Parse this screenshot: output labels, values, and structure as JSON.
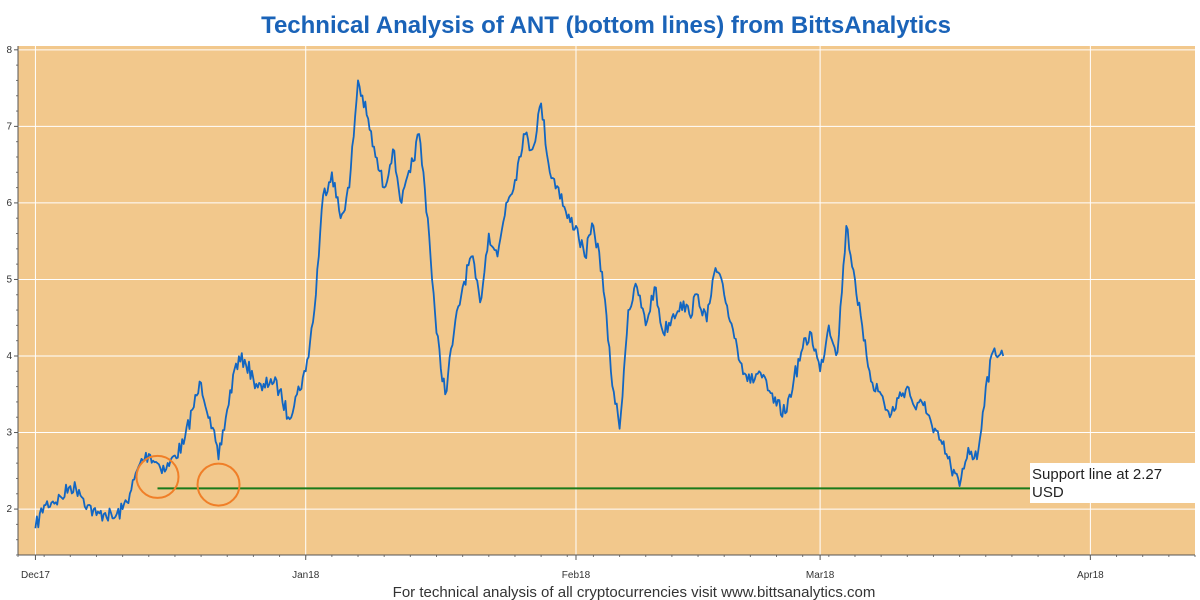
{
  "colors": {
    "background": "#f2c88c",
    "grid": "#ffffff",
    "price_line": "#1266c2",
    "support_line": "#1a7a1a",
    "circle": "#f07f28",
    "title": "#1a63b8",
    "annotation_bg": "#ffffff"
  },
  "chart_data": {
    "type": "line",
    "title": "Technical Analysis of ANT (bottom lines) from BittsAnalytics",
    "xlabel": "",
    "ylabel": "",
    "xlim": [
      "2017-11-29",
      "2018-04-13"
    ],
    "ylim": [
      1.4,
      8.05
    ],
    "x_ticks": [
      "Dec17",
      "Jan18",
      "Feb18",
      "Mar18",
      "Apr18"
    ],
    "x_tick_dates": [
      "2017-12-01",
      "2018-01-01",
      "2018-02-01",
      "2018-03-01",
      "2018-04-01"
    ],
    "y_ticks": [
      2,
      3,
      4,
      5,
      6,
      7,
      8
    ],
    "grid": true,
    "series": [
      {
        "points": [
          [
            "2017-12-01",
            1.75
          ],
          [
            "2017-12-02",
            2.05
          ],
          [
            "2017-12-03",
            2.1
          ],
          [
            "2017-12-04",
            2.15
          ],
          [
            "2017-12-05",
            2.3
          ],
          [
            "2017-12-06",
            2.25
          ],
          [
            "2017-12-07",
            2.05
          ],
          [
            "2017-12-08",
            1.92
          ],
          [
            "2017-12-09",
            1.95
          ],
          [
            "2017-12-10",
            1.88
          ],
          [
            "2017-12-11",
            2.0
          ],
          [
            "2017-12-12",
            2.25
          ],
          [
            "2017-12-13",
            2.6
          ],
          [
            "2017-12-14",
            2.72
          ],
          [
            "2017-12-15",
            2.6
          ],
          [
            "2017-12-16",
            2.52
          ],
          [
            "2017-12-17",
            2.7
          ],
          [
            "2017-12-18",
            2.85
          ],
          [
            "2017-12-19",
            3.3
          ],
          [
            "2017-12-20",
            3.65
          ],
          [
            "2017-12-21",
            3.2
          ],
          [
            "2017-12-22",
            2.65
          ],
          [
            "2017-12-23",
            3.3
          ],
          [
            "2017-12-24",
            3.9
          ],
          [
            "2017-12-25",
            3.95
          ],
          [
            "2017-12-26",
            3.7
          ],
          [
            "2017-12-27",
            3.55
          ],
          [
            "2017-12-28",
            3.7
          ],
          [
            "2017-12-29",
            3.55
          ],
          [
            "2017-12-30",
            3.2
          ],
          [
            "2017-12-31",
            3.5
          ],
          [
            "2018-01-01",
            3.8
          ],
          [
            "2018-01-02",
            4.6
          ],
          [
            "2018-01-03",
            6.1
          ],
          [
            "2018-01-04",
            6.4
          ],
          [
            "2018-01-05",
            5.8
          ],
          [
            "2018-01-06",
            6.2
          ],
          [
            "2018-01-07",
            7.6
          ],
          [
            "2018-01-08",
            7.15
          ],
          [
            "2018-01-09",
            6.6
          ],
          [
            "2018-01-10",
            6.2
          ],
          [
            "2018-01-11",
            6.7
          ],
          [
            "2018-01-12",
            6.0
          ],
          [
            "2018-01-13",
            6.4
          ],
          [
            "2018-01-14",
            6.9
          ],
          [
            "2018-01-15",
            5.8
          ],
          [
            "2018-01-16",
            4.3
          ],
          [
            "2018-01-17",
            3.5
          ],
          [
            "2018-01-18",
            4.3
          ],
          [
            "2018-01-19",
            4.9
          ],
          [
            "2018-01-20",
            5.3
          ],
          [
            "2018-01-21",
            4.7
          ],
          [
            "2018-01-22",
            5.6
          ],
          [
            "2018-01-23",
            5.3
          ],
          [
            "2018-01-24",
            6.0
          ],
          [
            "2018-01-25",
            6.3
          ],
          [
            "2018-01-26",
            6.9
          ],
          [
            "2018-01-27",
            6.7
          ],
          [
            "2018-01-28",
            7.3
          ],
          [
            "2018-01-29",
            6.4
          ],
          [
            "2018-01-30",
            6.2
          ],
          [
            "2018-01-31",
            5.8
          ],
          [
            "2018-02-01",
            5.7
          ],
          [
            "2018-02-02",
            5.3
          ],
          [
            "2018-02-03",
            5.7
          ],
          [
            "2018-02-04",
            5.1
          ],
          [
            "2018-02-05",
            3.8
          ],
          [
            "2018-02-06",
            3.05
          ],
          [
            "2018-02-07",
            4.6
          ],
          [
            "2018-02-08",
            4.9
          ],
          [
            "2018-02-09",
            4.4
          ],
          [
            "2018-02-10",
            4.9
          ],
          [
            "2018-02-11",
            4.3
          ],
          [
            "2018-02-12",
            4.5
          ],
          [
            "2018-02-13",
            4.7
          ],
          [
            "2018-02-14",
            4.55
          ],
          [
            "2018-02-15",
            4.8
          ],
          [
            "2018-02-16",
            4.45
          ],
          [
            "2018-02-17",
            5.15
          ],
          [
            "2018-02-18",
            4.8
          ],
          [
            "2018-02-19",
            4.35
          ],
          [
            "2018-02-20",
            3.9
          ],
          [
            "2018-02-21",
            3.65
          ],
          [
            "2018-02-22",
            3.8
          ],
          [
            "2018-02-23",
            3.55
          ],
          [
            "2018-02-24",
            3.35
          ],
          [
            "2018-02-25",
            3.25
          ],
          [
            "2018-02-26",
            3.7
          ],
          [
            "2018-02-27",
            4.1
          ],
          [
            "2018-02-28",
            4.3
          ],
          [
            "2018-03-01",
            3.8
          ],
          [
            "2018-03-02",
            4.4
          ],
          [
            "2018-03-03",
            4.05
          ],
          [
            "2018-03-04",
            5.7
          ],
          [
            "2018-03-05",
            5.0
          ],
          [
            "2018-03-06",
            4.2
          ],
          [
            "2018-03-07",
            3.65
          ],
          [
            "2018-03-08",
            3.5
          ],
          [
            "2018-03-09",
            3.2
          ],
          [
            "2018-03-10",
            3.45
          ],
          [
            "2018-03-11",
            3.6
          ],
          [
            "2018-03-12",
            3.3
          ],
          [
            "2018-03-13",
            3.4
          ],
          [
            "2018-03-14",
            3.0
          ],
          [
            "2018-03-15",
            2.85
          ],
          [
            "2018-03-16",
            2.55
          ],
          [
            "2018-03-17",
            2.3
          ],
          [
            "2018-03-18",
            2.8
          ],
          [
            "2018-03-19",
            2.65
          ],
          [
            "2018-03-20",
            3.6
          ],
          [
            "2018-03-21",
            4.1
          ],
          [
            "2018-03-22",
            4.0
          ]
        ]
      }
    ],
    "support_line": {
      "value": 2.27,
      "from": "2017-12-15",
      "to": "2018-03-31"
    },
    "circle_markers": [
      {
        "date": "2017-12-15",
        "value": 2.42
      },
      {
        "date": "2017-12-22",
        "value": 2.32
      }
    ],
    "annotations": [
      "Support line at 2.27",
      "USD"
    ]
  },
  "footer": {
    "text": "For technical analysis of all cryptocurrencies visit www.bittsanalytics.com"
  }
}
